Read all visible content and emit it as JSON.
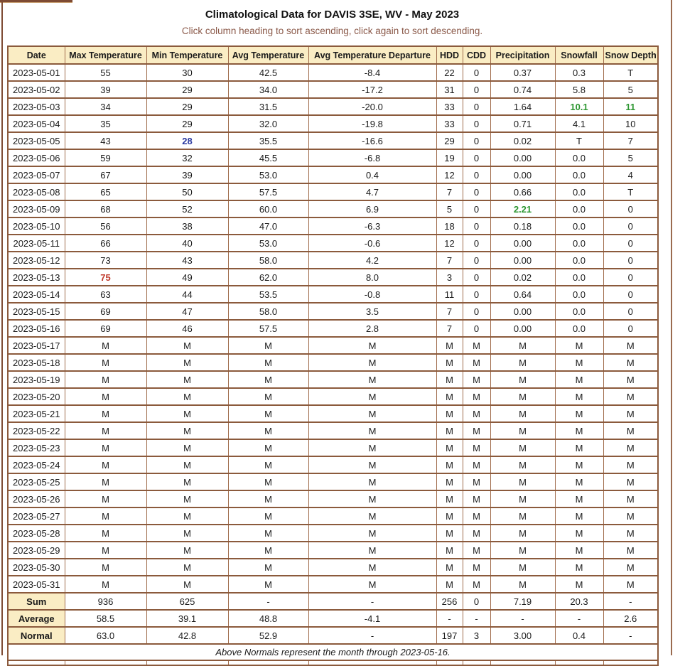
{
  "page": {
    "title": "Climatological Data for DAVIS 3SE, WV - May 2023",
    "subtitle": "Click column heading to sort ascending, click again to sort descending.",
    "footnote": "Above Normals represent the month through 2023-05-16."
  },
  "colors": {
    "header_bg": "#FAEDC4",
    "table_border": "#8B5A3C",
    "subtitle_text": "#8B5A4A",
    "above_normal_green": "#2E9732",
    "low_min_blue": "#2B3AA0",
    "high_max_red": "#C0392B"
  },
  "table": {
    "columns": [
      "Date",
      "Max Temperature",
      "Min Temperature",
      "Avg Temperature",
      "Avg Temperature Departure",
      "HDD",
      "CDD",
      "Precipitation",
      "Snowfall",
      "Snow Depth"
    ],
    "rows": [
      [
        "2023-05-01",
        "55",
        "30",
        "42.5",
        "-8.4",
        "22",
        "0",
        "0.37",
        "0.3",
        "T"
      ],
      [
        "2023-05-02",
        "39",
        "29",
        "34.0",
        "-17.2",
        "31",
        "0",
        "0.74",
        "5.8",
        "5"
      ],
      [
        "2023-05-03",
        "34",
        "29",
        "31.5",
        "-20.0",
        "33",
        "0",
        "1.64",
        "10.1",
        "11"
      ],
      [
        "2023-05-04",
        "35",
        "29",
        "32.0",
        "-19.8",
        "33",
        "0",
        "0.71",
        "4.1",
        "10"
      ],
      [
        "2023-05-05",
        "43",
        "28",
        "35.5",
        "-16.6",
        "29",
        "0",
        "0.02",
        "T",
        "7"
      ],
      [
        "2023-05-06",
        "59",
        "32",
        "45.5",
        "-6.8",
        "19",
        "0",
        "0.00",
        "0.0",
        "5"
      ],
      [
        "2023-05-07",
        "67",
        "39",
        "53.0",
        "0.4",
        "12",
        "0",
        "0.00",
        "0.0",
        "4"
      ],
      [
        "2023-05-08",
        "65",
        "50",
        "57.5",
        "4.7",
        "7",
        "0",
        "0.66",
        "0.0",
        "T"
      ],
      [
        "2023-05-09",
        "68",
        "52",
        "60.0",
        "6.9",
        "5",
        "0",
        "2.21",
        "0.0",
        "0"
      ],
      [
        "2023-05-10",
        "56",
        "38",
        "47.0",
        "-6.3",
        "18",
        "0",
        "0.18",
        "0.0",
        "0"
      ],
      [
        "2023-05-11",
        "66",
        "40",
        "53.0",
        "-0.6",
        "12",
        "0",
        "0.00",
        "0.0",
        "0"
      ],
      [
        "2023-05-12",
        "73",
        "43",
        "58.0",
        "4.2",
        "7",
        "0",
        "0.00",
        "0.0",
        "0"
      ],
      [
        "2023-05-13",
        "75",
        "49",
        "62.0",
        "8.0",
        "3",
        "0",
        "0.02",
        "0.0",
        "0"
      ],
      [
        "2023-05-14",
        "63",
        "44",
        "53.5",
        "-0.8",
        "11",
        "0",
        "0.64",
        "0.0",
        "0"
      ],
      [
        "2023-05-15",
        "69",
        "47",
        "58.0",
        "3.5",
        "7",
        "0",
        "0.00",
        "0.0",
        "0"
      ],
      [
        "2023-05-16",
        "69",
        "46",
        "57.5",
        "2.8",
        "7",
        "0",
        "0.00",
        "0.0",
        "0"
      ],
      [
        "2023-05-17",
        "M",
        "M",
        "M",
        "M",
        "M",
        "M",
        "M",
        "M",
        "M"
      ],
      [
        "2023-05-18",
        "M",
        "M",
        "M",
        "M",
        "M",
        "M",
        "M",
        "M",
        "M"
      ],
      [
        "2023-05-19",
        "M",
        "M",
        "M",
        "M",
        "M",
        "M",
        "M",
        "M",
        "M"
      ],
      [
        "2023-05-20",
        "M",
        "M",
        "M",
        "M",
        "M",
        "M",
        "M",
        "M",
        "M"
      ],
      [
        "2023-05-21",
        "M",
        "M",
        "M",
        "M",
        "M",
        "M",
        "M",
        "M",
        "M"
      ],
      [
        "2023-05-22",
        "M",
        "M",
        "M",
        "M",
        "M",
        "M",
        "M",
        "M",
        "M"
      ],
      [
        "2023-05-23",
        "M",
        "M",
        "M",
        "M",
        "M",
        "M",
        "M",
        "M",
        "M"
      ],
      [
        "2023-05-24",
        "M",
        "M",
        "M",
        "M",
        "M",
        "M",
        "M",
        "M",
        "M"
      ],
      [
        "2023-05-25",
        "M",
        "M",
        "M",
        "M",
        "M",
        "M",
        "M",
        "M",
        "M"
      ],
      [
        "2023-05-26",
        "M",
        "M",
        "M",
        "M",
        "M",
        "M",
        "M",
        "M",
        "M"
      ],
      [
        "2023-05-27",
        "M",
        "M",
        "M",
        "M",
        "M",
        "M",
        "M",
        "M",
        "M"
      ],
      [
        "2023-05-28",
        "M",
        "M",
        "M",
        "M",
        "M",
        "M",
        "M",
        "M",
        "M"
      ],
      [
        "2023-05-29",
        "M",
        "M",
        "M",
        "M",
        "M",
        "M",
        "M",
        "M",
        "M"
      ],
      [
        "2023-05-30",
        "M",
        "M",
        "M",
        "M",
        "M",
        "M",
        "M",
        "M",
        "M"
      ],
      [
        "2023-05-31",
        "M",
        "M",
        "M",
        "M",
        "M",
        "M",
        "M",
        "M",
        "M"
      ]
    ],
    "highlights": [
      {
        "row": 2,
        "col": 8,
        "color": "green"
      },
      {
        "row": 2,
        "col": 9,
        "color": "green"
      },
      {
        "row": 4,
        "col": 2,
        "color": "blue"
      },
      {
        "row": 8,
        "col": 7,
        "color": "green"
      },
      {
        "row": 12,
        "col": 1,
        "color": "red"
      }
    ],
    "summary": [
      {
        "label": "Sum",
        "cells": [
          "936",
          "625",
          "-",
          "-",
          "256",
          "0",
          "7.19",
          "20.3",
          "-"
        ]
      },
      {
        "label": "Average",
        "cells": [
          "58.5",
          "39.1",
          "48.8",
          "-4.1",
          "-",
          "-",
          "-",
          "-",
          "2.6"
        ]
      },
      {
        "label": "Normal",
        "cells": [
          "63.0",
          "42.8",
          "52.9",
          "-",
          "197",
          "3",
          "3.00",
          "0.4",
          "-"
        ]
      }
    ]
  }
}
